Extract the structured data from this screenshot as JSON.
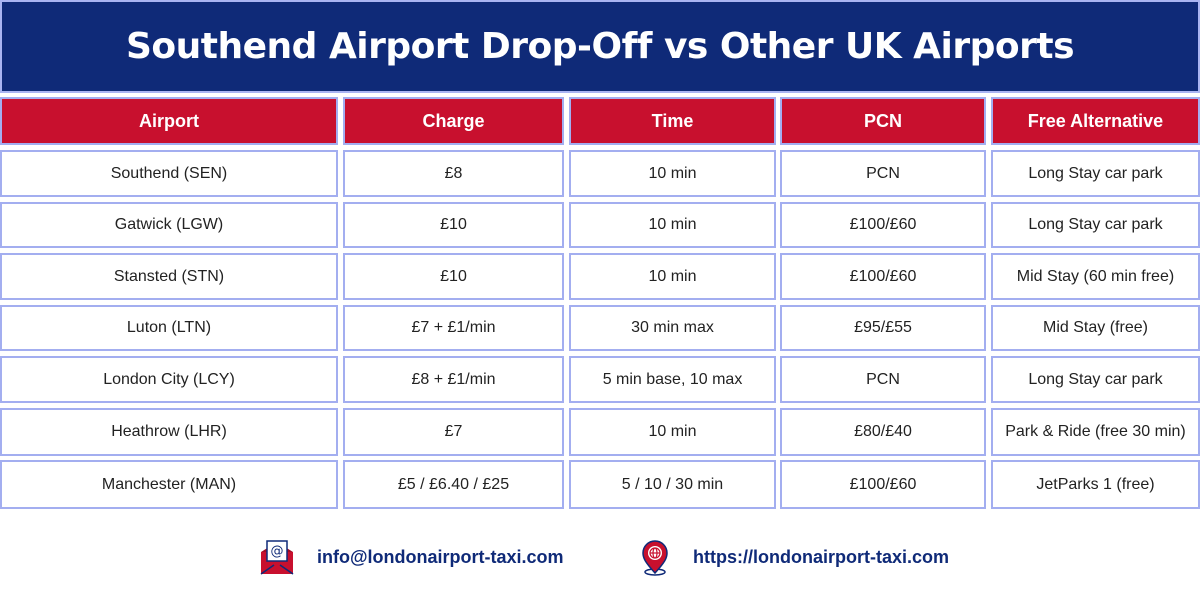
{
  "header": {
    "title": "Southend Airport Drop-Off vs Other UK Airports"
  },
  "table": {
    "columns": [
      "Airport",
      "Charge",
      "Time",
      "PCN",
      "Free Alternative"
    ],
    "rows": [
      [
        "Southend (SEN)",
        "£8",
        "10 min",
        "PCN",
        "Long Stay car park"
      ],
      [
        "Gatwick (LGW)",
        "£10",
        "10 min",
        "£100/£60",
        "Long Stay car park"
      ],
      [
        "Stansted (STN)",
        "£10",
        "10 min",
        "£100/£60",
        "Mid Stay (60 min free)"
      ],
      [
        "Luton (LTN)",
        "£7 + £1/min",
        "30 min max",
        "£95/£55",
        "Mid Stay (free)"
      ],
      [
        "London City (LCY)",
        "£8 + £1/min",
        "5 min base, 10 max",
        "PCN",
        "Long Stay car park"
      ],
      [
        "Heathrow (LHR)",
        "£7",
        "10 min",
        "£80/£40",
        "Park & Ride (free 30 min)"
      ],
      [
        "Manchester (MAN)",
        "£5 / £6.40 / £25",
        "5 / 10 / 30 min",
        "£100/£60",
        "JetParks 1 (free)"
      ]
    ]
  },
  "footer": {
    "email": "info@londonairport-taxi.com",
    "website": "https://londonairport-taxi.com"
  }
}
